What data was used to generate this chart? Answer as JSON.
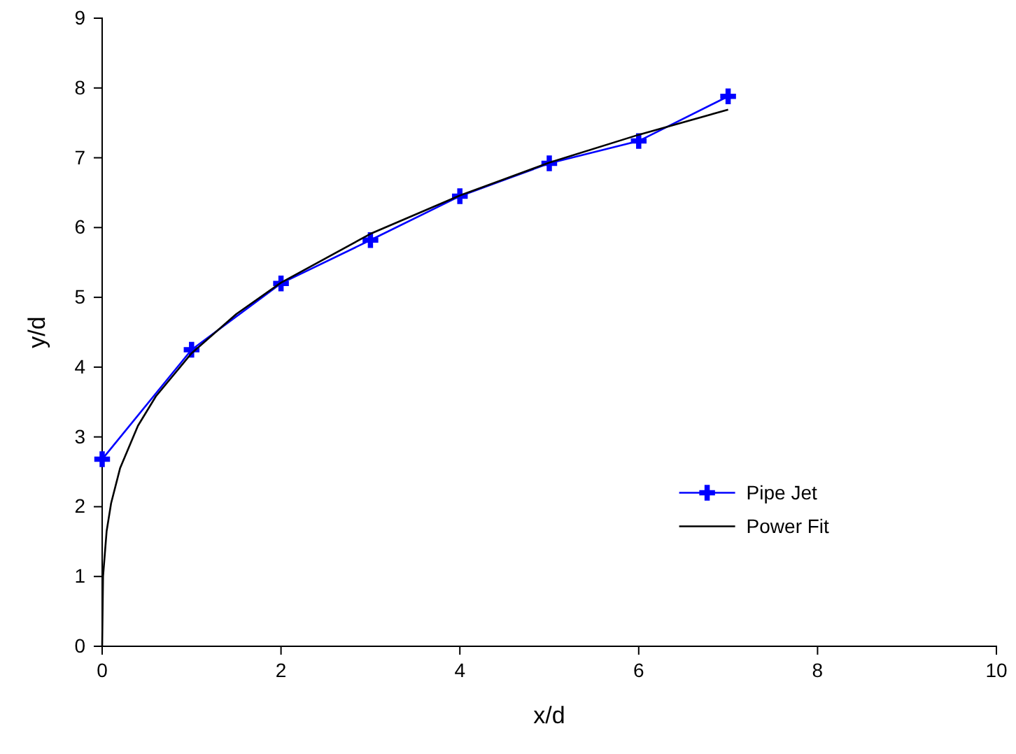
{
  "chart_data": {
    "type": "line",
    "xlabel": "x/d",
    "ylabel": "y/d",
    "xlim": [
      0,
      10
    ],
    "ylim": [
      0,
      9
    ],
    "xticks": [
      0,
      2,
      4,
      6,
      8,
      10
    ],
    "yticks": [
      0,
      1,
      2,
      3,
      4,
      5,
      6,
      7,
      8,
      9
    ],
    "grid": false,
    "legend": "bottom right",
    "series": [
      {
        "name": "Pipe Jet",
        "color": "#0000ff",
        "marker": "cross",
        "x": [
          0,
          1,
          2,
          3,
          4,
          5,
          6,
          7
        ],
        "values": [
          2.68,
          4.25,
          5.2,
          5.82,
          6.45,
          6.92,
          7.24,
          7.88
        ]
      },
      {
        "name": "Power Fit",
        "color": "#000000",
        "marker": "none",
        "x": [
          0,
          0.01,
          0.05,
          0.1,
          0.2,
          0.4,
          0.6,
          1,
          1.5,
          2,
          3,
          4,
          5,
          6,
          7
        ],
        "values": [
          0,
          1.0,
          1.65,
          2.05,
          2.55,
          3.16,
          3.58,
          4.2,
          4.76,
          5.21,
          5.91,
          6.46,
          6.93,
          7.33,
          7.69
        ]
      }
    ]
  }
}
